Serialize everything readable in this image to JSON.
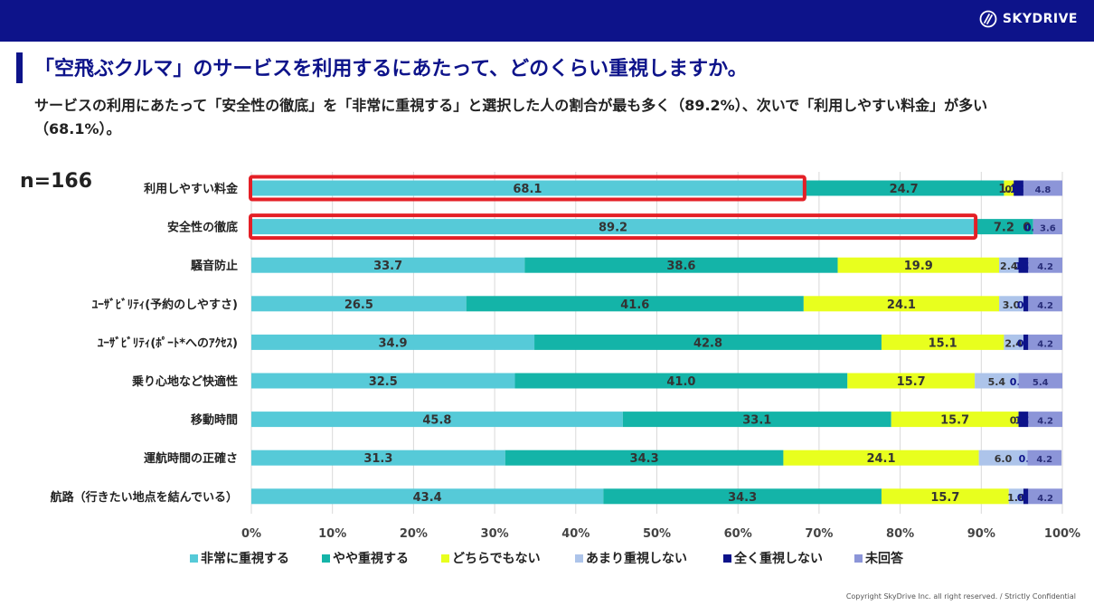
{
  "header": {
    "brand": "SKYDRIVE",
    "brand_color": "#0d138a",
    "logo_icon": "skydrive-logo-icon"
  },
  "title": "「空飛ぶクルマ」のサービスを利用するにあたって、どのくらい重視しますか。",
  "subtitle": "サービスの利用にあたって「安全性の徹底」を「非常に重視する」と選択した人の割合が最も多く（89.2%）、次いで「利用しやすい料金」が多い（68.1%）。",
  "sample_size": "n=166",
  "footer": "Copyright SkyDrive Inc. all right reserved. / Strictly Confidential",
  "chart_data": {
    "type": "bar",
    "orientation": "horizontal",
    "stacked": true,
    "percent_stacked": true,
    "categories": [
      "利用しやすい料金",
      "安全性の徹底",
      "騒音防止",
      "ﾕｰｻﾞﾋﾞﾘﾃｨ(予約のしやすさ)",
      "ﾕｰｻﾞﾋﾞﾘﾃｨ(ﾎﾟｰﾄ*へのｱｸｾｽ)",
      "乗り心地など快適性",
      "移動時間",
      "運航時間の正確さ",
      "航路（行きたい地点を結んでいる）"
    ],
    "series": [
      {
        "name": "非常に重視する",
        "color": "#56cad8",
        "values": [
          68.1,
          89.2,
          33.7,
          26.5,
          34.9,
          32.5,
          45.8,
          31.3,
          43.4
        ]
      },
      {
        "name": "やや重視する",
        "color": "#14b4a8",
        "values": [
          24.7,
          7.2,
          38.6,
          41.6,
          42.8,
          41.0,
          33.1,
          34.3,
          34.3
        ]
      },
      {
        "name": "どちらでもない",
        "color": "#e8ff1e",
        "values": [
          1.2,
          0.0,
          19.9,
          24.1,
          15.1,
          15.7,
          15.7,
          24.1,
          15.7
        ]
      },
      {
        "name": "あまり重視しない",
        "color": "#adc4ea",
        "values": [
          0.0,
          0.0,
          2.4,
          3.0,
          2.4,
          5.4,
          0.0,
          6.0,
          1.8
        ]
      },
      {
        "name": "全く重視しない",
        "color": "#0d138a",
        "values": [
          1.2,
          0.0,
          1.2,
          0.6,
          0.6,
          0.0,
          1.2,
          0.0,
          0.6
        ]
      },
      {
        "name": "未回答",
        "color": "#8c95d8",
        "values": [
          4.8,
          3.6,
          4.2,
          4.2,
          4.2,
          5.4,
          4.2,
          4.2,
          4.2
        ]
      }
    ],
    "xlim": [
      0,
      100
    ],
    "xticks": [
      "0%",
      "10%",
      "20%",
      "30%",
      "40%",
      "50%",
      "60%",
      "70%",
      "80%",
      "90%",
      "100%"
    ],
    "xlabel": "",
    "ylabel": "",
    "legend_position": "bottom",
    "highlighted_categories": [
      0,
      1
    ],
    "highlight_color": "#e41f26",
    "gridlines": true
  }
}
